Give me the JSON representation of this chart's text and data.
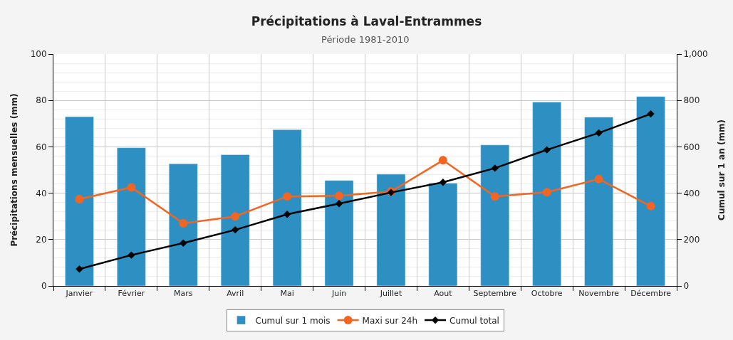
{
  "chart_data": {
    "type": "bar",
    "title": "Précipitations à Laval-Entrammes",
    "subtitle": "Période 1981-2010",
    "ylabel": "Précipitations mensuelles (mm)",
    "y2label": "Cumul sur 1 an (mm)",
    "categories": [
      "Janvier",
      "Février",
      "Mars",
      "Avril",
      "Mai",
      "Juin",
      "Juillet",
      "Aout",
      "Septembre",
      "Octobre",
      "Novembre",
      "Décembre"
    ],
    "series": [
      {
        "name": "Cumul sur 1 mois",
        "color": "#2e90c2",
        "values": [
          73,
          59.6,
          52.7,
          56.6,
          67.4,
          45.5,
          48.2,
          44.3,
          60.8,
          79.3,
          72.8,
          81.7
        ]
      },
      {
        "name": "Maxi sur 24h",
        "type": "line",
        "color": "#f26522",
        "marker": "circle",
        "values": [
          37.4,
          42.5,
          27,
          30,
          38.6,
          38.9,
          40.7,
          54.2,
          38.6,
          40.4,
          46.1,
          34.4
        ]
      },
      {
        "name": "Cumul total",
        "type": "line",
        "axis": "y2",
        "color": "#000000",
        "marker": "diamond",
        "values": [
          73,
          133,
          185,
          242,
          309,
          355,
          403,
          447,
          508,
          587,
          660,
          742
        ]
      }
    ],
    "ylim": [
      0,
      100
    ],
    "yticks": [
      0,
      20,
      40,
      60,
      80,
      100
    ],
    "y2lim": [
      0,
      1000
    ],
    "y2ticks": [
      0,
      200,
      400,
      600,
      800,
      {
        "value": 1000,
        "label": "1,000"
      }
    ],
    "grid": true,
    "legend": "bottom"
  }
}
